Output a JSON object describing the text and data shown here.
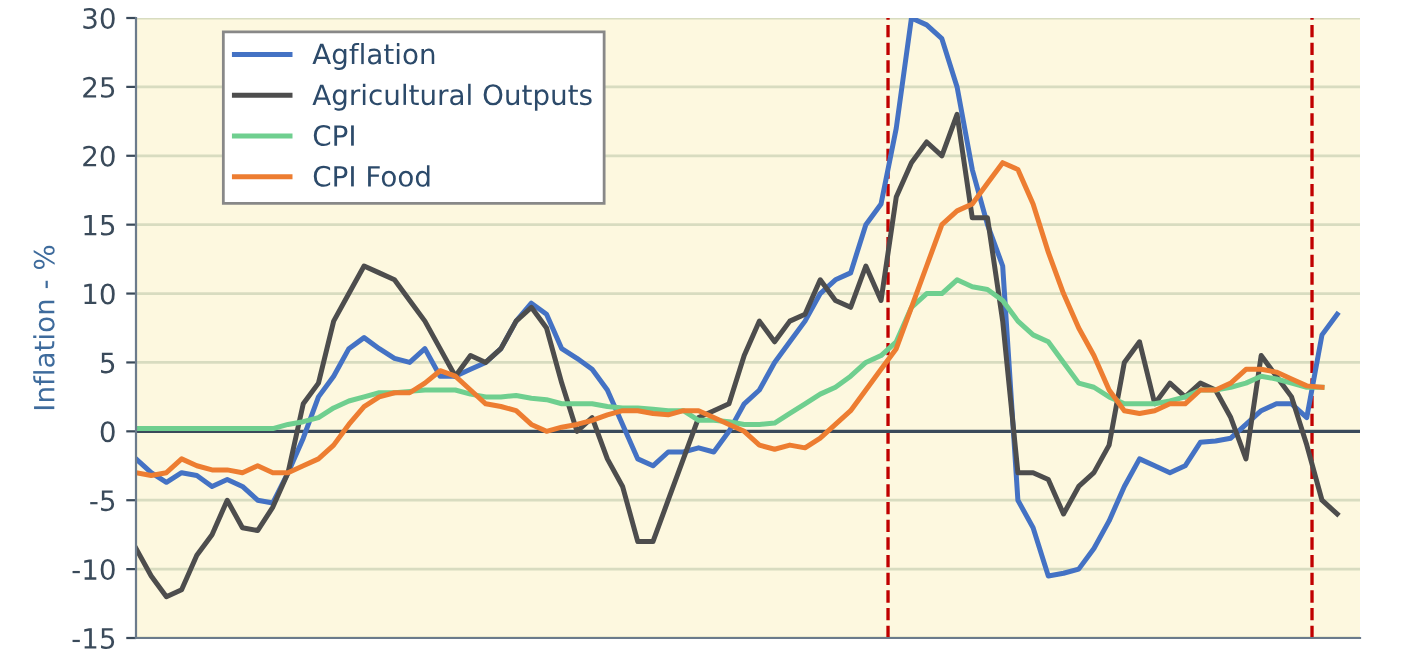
{
  "chart_data": {
    "type": "line",
    "ylabel": "Inflation - %",
    "categories": [
      null,
      null,
      null,
      null,
      null,
      null,
      null,
      null,
      null,
      null,
      null,
      null,
      null,
      null,
      null,
      null,
      null,
      null,
      null,
      null,
      null,
      null,
      null,
      null,
      null,
      null,
      null,
      null,
      null,
      null,
      null,
      null,
      null,
      null,
      null,
      null,
      null,
      null,
      null,
      null,
      null,
      null,
      null,
      null,
      null,
      null,
      null,
      null,
      null,
      null,
      null,
      null,
      null,
      null,
      null,
      null,
      null,
      null,
      null,
      null,
      null,
      null,
      null,
      null,
      null,
      null,
      null,
      null,
      null,
      null,
      null,
      null,
      null,
      null,
      null,
      null,
      null,
      null,
      null,
      null
    ],
    "series": [
      {
        "name": "Agflation",
        "color": "#4472c4",
        "values": [
          -2,
          -3,
          -3.7,
          -3,
          -3.2,
          -4,
          -3.5,
          -4,
          -5,
          -5.2,
          -3,
          -0.5,
          2.5,
          4,
          6,
          6.8,
          6,
          5.3,
          5,
          6,
          4,
          4,
          4.5,
          5,
          6,
          8,
          9.3,
          8.5,
          6,
          5.3,
          4.5,
          3,
          0.5,
          -2,
          -2.5,
          -1.5,
          -1.5,
          -1.2,
          -1.5,
          0,
          2,
          3,
          5,
          6.5,
          8,
          10,
          11,
          11.5,
          15,
          16.5,
          22,
          30,
          29.5,
          28.5,
          25,
          19,
          15,
          12,
          -5,
          -7,
          -10.5,
          -10.3,
          -10,
          -8.5,
          -6.5,
          -4,
          -2,
          -2.5,
          -3,
          -2.5,
          -0.8,
          -0.7,
          -0.5,
          0.5,
          1.5,
          2,
          2,
          1,
          7,
          8.5
        ]
      },
      {
        "name": "Agricultural Outputs",
        "color": "#4d4d4d",
        "values": [
          -8.5,
          -10.5,
          -12,
          -11.5,
          -9,
          -7.5,
          -5,
          -7,
          -7.2,
          -5.5,
          -3,
          2,
          3.5,
          8,
          10,
          12,
          11.5,
          11,
          9.5,
          8,
          6,
          4,
          5.5,
          5,
          6,
          8,
          9,
          7.5,
          3.5,
          0,
          1,
          -2,
          -4,
          -8,
          -8,
          -5,
          -2,
          1,
          1.5,
          2,
          5.5,
          8,
          6.5,
          8,
          8.5,
          11,
          9.5,
          9,
          12,
          9.5,
          17,
          19.5,
          21,
          20,
          23,
          15.5,
          15.5,
          8,
          -3,
          -3,
          -3.5,
          -6,
          -4,
          -3,
          -1,
          5,
          6.5,
          2,
          3.5,
          2.5,
          3.5,
          3,
          1,
          -2,
          5.5,
          4,
          2.5,
          -1,
          -5,
          -6
        ]
      },
      {
        "name": "CPI",
        "color": "#6fcf8f",
        "values": [
          0.2,
          0.2,
          0.2,
          0.2,
          0.2,
          0.2,
          0.2,
          0.2,
          0.2,
          0.2,
          0.5,
          0.7,
          1,
          1.7,
          2.2,
          2.5,
          2.8,
          2.8,
          2.9,
          3,
          3,
          3,
          2.7,
          2.5,
          2.5,
          2.6,
          2.4,
          2.3,
          2,
          2,
          2,
          1.8,
          1.7,
          1.7,
          1.6,
          1.5,
          1.5,
          0.8,
          0.8,
          0.7,
          0.5,
          0.5,
          0.6,
          1.3,
          2,
          2.7,
          3.2,
          4,
          5,
          5.5,
          6.5,
          9,
          10,
          10,
          11,
          10.5,
          10.3,
          9.5,
          8,
          7,
          6.5,
          5,
          3.5,
          3.2,
          2.5,
          2,
          2,
          2,
          2.2,
          2.5,
          3,
          3,
          3.2,
          3.5,
          4,
          3.8,
          3.5,
          3.2,
          3.2,
          null
        ]
      },
      {
        "name": "CPI Food",
        "color": "#ed7d31",
        "values": [
          -3,
          -3.2,
          -3,
          -2,
          -2.5,
          -2.8,
          -2.8,
          -3,
          -2.5,
          -3,
          -3,
          -2.5,
          -2,
          -1,
          0.5,
          1.8,
          2.5,
          2.8,
          2.8,
          3.5,
          4.4,
          4,
          3,
          2,
          1.8,
          1.5,
          0.5,
          0,
          0.3,
          0.5,
          0.8,
          1.2,
          1.5,
          1.5,
          1.3,
          1.2,
          1.5,
          1.5,
          1,
          0.5,
          0,
          -1,
          -1.3,
          -1,
          -1.2,
          -0.5,
          0.5,
          1.5,
          3,
          4.5,
          6,
          9,
          12,
          15,
          16,
          16.5,
          18,
          19.5,
          19,
          16.5,
          13,
          10,
          7.5,
          5.5,
          3,
          1.5,
          1.3,
          1.5,
          2,
          2,
          3,
          3,
          3.5,
          4.5,
          4.5,
          4.3,
          3.8,
          3.3,
          3.2,
          null
        ]
      }
    ],
    "ylim": [
      -15,
      30
    ],
    "yticks": [
      -15,
      -10,
      -5,
      0,
      5,
      10,
      15,
      20,
      25,
      30
    ],
    "ref_lines": [
      {
        "axis": "y",
        "value": 0,
        "color": "#3a4a5a",
        "line_style": "solid"
      }
    ],
    "grid": "y",
    "legend": "top left",
    "tick_labels": "y",
    "marker": "none",
    "line_style": "solid"
  }
}
